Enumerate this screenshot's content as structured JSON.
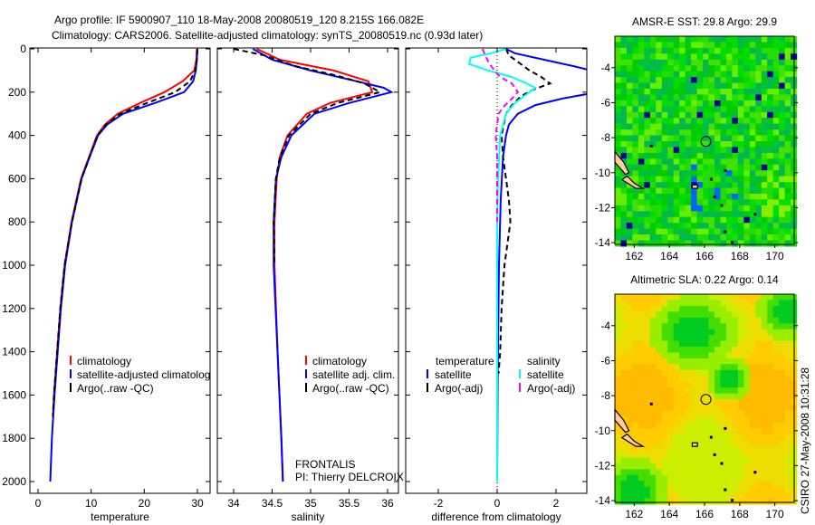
{
  "title_lines": [
    "Argo profile: IF 5900907_110 18-May-2008 20080519_120 8.215S 166.082E",
    "Climatology: CARS2006. Satellite-adjusted climatology: synTS_20080519.nc (0.93d later)"
  ],
  "side_stamp": "CSIRO 27-May-2008 10:31:28",
  "chart_data": [
    {
      "type": "line",
      "id": "temperature",
      "xlabel": "temperature",
      "ylabel": "",
      "xlim": [
        -2,
        32
      ],
      "ylim": [
        2080,
        0
      ],
      "xticks": [
        0,
        10,
        20,
        30
      ],
      "yticks": [
        0,
        200,
        400,
        600,
        800,
        1000,
        1200,
        1400,
        1600,
        1800,
        2000
      ],
      "legend": [
        "climatology",
        "satellite-adjusted climatology",
        "Argo(..raw -QC)"
      ],
      "series": [
        {
          "name": "climatology",
          "color": "#ff0000",
          "style": "solid",
          "depth": [
            0,
            50,
            100,
            150,
            200,
            250,
            300,
            350,
            400,
            500,
            600,
            800,
            1000,
            1200,
            1400,
            1600,
            1700
          ],
          "values": [
            29.9,
            29.8,
            29.4,
            27.2,
            23.8,
            19.2,
            15.0,
            12.6,
            11.1,
            9.6,
            8.1,
            6.3,
            5.0,
            4.2,
            3.6,
            3.0,
            2.8
          ]
        },
        {
          "name": "satellite-adjusted climatology",
          "color": "#0000ff",
          "style": "solid",
          "depth": [
            0,
            50,
            100,
            150,
            200,
            250,
            300,
            350,
            400,
            500,
            600,
            800,
            1000,
            1200,
            1400,
            1600,
            1800,
            2000
          ],
          "values": [
            30.0,
            29.9,
            29.7,
            29.2,
            27.5,
            22.0,
            16.0,
            13.0,
            11.3,
            9.7,
            8.2,
            6.4,
            5.1,
            4.3,
            3.7,
            3.1,
            2.6,
            2.3
          ]
        },
        {
          "name": "Argo(..raw -QC)",
          "color": "#000000",
          "style": "dashed",
          "depth": [
            0,
            50,
            100,
            150,
            200,
            250,
            300,
            350,
            400,
            500,
            600,
            800,
            1000,
            1200,
            1400,
            1600,
            1700
          ],
          "values": [
            30.0,
            29.9,
            29.6,
            28.6,
            25.8,
            20.5,
            15.5,
            12.8,
            11.2,
            9.7,
            8.2,
            6.4,
            5.0,
            4.2,
            3.6,
            3.0,
            2.8
          ]
        }
      ]
    },
    {
      "type": "line",
      "id": "salinity",
      "xlabel": "salinity",
      "xlim": [
        33.7,
        36.1
      ],
      "ylim": [
        2080,
        0
      ],
      "xticks": [
        34,
        34.5,
        35,
        35.5,
        36
      ],
      "legend": [
        "climatology",
        "satellite adj. clim.",
        "Argo(..raw -QC)"
      ],
      "annotation": [
        "FRONTALIS",
        "PI: Thierry DELCROIX"
      ],
      "series": [
        {
          "name": "climatology",
          "color": "#ff0000",
          "style": "solid",
          "depth": [
            0,
            50,
            100,
            150,
            200,
            250,
            300,
            400,
            500,
            600,
            800,
            1000,
            1400,
            1800,
            2000
          ],
          "values": [
            34.3,
            34.6,
            35.3,
            35.75,
            35.8,
            35.25,
            34.95,
            34.7,
            34.6,
            34.56,
            34.53,
            34.53,
            34.57,
            34.62,
            34.64
          ]
        },
        {
          "name": "satellite adj. clim.",
          "color": "#0000ff",
          "style": "solid",
          "depth": [
            0,
            50,
            100,
            150,
            180,
            200,
            250,
            300,
            400,
            500,
            600,
            800,
            1000,
            1400,
            1800,
            2000
          ],
          "values": [
            34.25,
            34.5,
            35.0,
            35.6,
            35.95,
            36.05,
            35.5,
            35.05,
            34.75,
            34.62,
            34.55,
            34.52,
            34.52,
            34.57,
            34.62,
            34.64
          ]
        },
        {
          "name": "Argo(..raw -QC)",
          "color": "#000000",
          "style": "dashed",
          "depth": [
            0,
            30,
            80,
            120,
            160,
            200,
            250,
            300,
            400,
            500,
            600,
            800,
            1000
          ],
          "values": [
            34.0,
            34.4,
            34.8,
            35.3,
            35.7,
            35.9,
            35.35,
            35.0,
            34.72,
            34.6,
            34.55,
            34.52,
            34.53
          ]
        }
      ]
    },
    {
      "type": "line",
      "id": "difference",
      "xlabel": "difference from climatology",
      "xlim": [
        -3.1,
        3.1
      ],
      "ylim": [
        2080,
        0
      ],
      "xticks": [
        -2,
        0,
        2
      ],
      "legend_titles": [
        "temperature",
        "salinity"
      ],
      "legend": [
        "satellite",
        "Argo(-adj)",
        "satellite",
        "Argo(-adj)"
      ],
      "series": [
        {
          "name": "temperature satellite",
          "color": "#0000ff",
          "style": "solid",
          "depth": [
            0,
            20,
            50,
            80,
            100,
            130,
            150,
            200,
            230,
            260,
            300,
            350,
            400,
            500,
            700,
            1000,
            1500,
            2000
          ],
          "values": [
            0.3,
            0.6,
            1.6,
            2.6,
            3.2,
            3.6,
            4.0,
            3.4,
            2.2,
            1.3,
            0.7,
            0.4,
            0.3,
            0.2,
            0.12,
            0.06,
            0.02,
            0.0
          ]
        },
        {
          "name": "temperature Argo(-adj)",
          "color": "#000000",
          "style": "dashed",
          "depth": [
            0,
            30,
            60,
            100,
            130,
            160,
            190,
            220,
            260,
            300,
            400,
            500,
            600,
            700,
            800,
            900,
            1000,
            1200,
            1400,
            1500
          ],
          "values": [
            0.3,
            0.4,
            0.7,
            1.1,
            1.5,
            1.8,
            1.2,
            0.8,
            0.5,
            0.3,
            0.15,
            0.2,
            0.3,
            0.4,
            0.45,
            0.35,
            0.25,
            0.15,
            0.1,
            0.05
          ]
        },
        {
          "name": "salinity satellite",
          "color": "#00ffff",
          "style": "solid",
          "depth": [
            0,
            20,
            40,
            70,
            100,
            130,
            160,
            180,
            200,
            250,
            300,
            400,
            600,
            800,
            1000,
            1500,
            2000
          ],
          "values": [
            0.3,
            -0.2,
            -0.9,
            -0.95,
            -0.3,
            0.5,
            1.0,
            1.3,
            1.1,
            0.6,
            0.3,
            0.1,
            0.03,
            0.0,
            0.0,
            0.0,
            0.0
          ]
        },
        {
          "name": "salinity Argo(-adj)",
          "color": "#ff00ff",
          "style": "dashed",
          "depth": [
            0,
            30,
            60,
            100,
            130,
            160,
            200,
            230,
            270,
            300,
            400,
            500,
            600,
            800
          ],
          "values": [
            -0.5,
            -0.4,
            -0.3,
            -0.1,
            0.1,
            0.5,
            0.7,
            0.5,
            0.2,
            0.05,
            -0.05,
            0.0,
            0.0,
            0.0
          ]
        }
      ]
    },
    {
      "type": "heatmap",
      "id": "sst-map",
      "title": "AMSR-E SST: 29.8 Argo: 29.9",
      "xlim": [
        160.9,
        171.1
      ],
      "ylim": [
        -14.1,
        -2.2
      ],
      "xticks": [
        162,
        164,
        166,
        168,
        170
      ],
      "yticks": [
        -4,
        -6,
        -8,
        -10,
        -12,
        -14
      ],
      "marker": {
        "lon": 166.08,
        "lat": -8.215
      }
    },
    {
      "type": "heatmap",
      "id": "sla-map",
      "title": "Altimetric SLA: 0.22 Argo: 0.14",
      "xlim": [
        160.9,
        171.1
      ],
      "ylim": [
        -14.1,
        -2.2
      ],
      "xticks": [
        162,
        164,
        166,
        168,
        170
      ],
      "yticks": [
        -4,
        -6,
        -8,
        -10,
        -12,
        -14
      ],
      "marker": {
        "lon": 166.08,
        "lat": -8.215
      }
    }
  ]
}
